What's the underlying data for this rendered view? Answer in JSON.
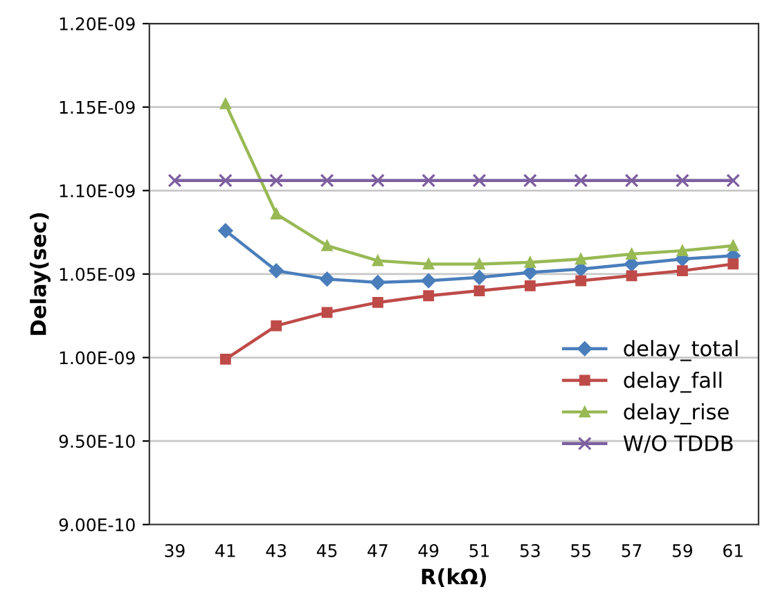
{
  "chart_data": {
    "type": "line",
    "xlabel": "R(kΩ)",
    "ylabel": "Delay(sec)",
    "categories": [
      "39",
      "41",
      "43",
      "45",
      "47",
      "49",
      "51",
      "53",
      "55",
      "57",
      "59",
      "61"
    ],
    "series": [
      {
        "name": "delay_total",
        "color": "#4a7ebb",
        "marker": "diamond",
        "values": [
          null,
          1.076e-09,
          1.052e-09,
          1.047e-09,
          1.045e-09,
          1.046e-09,
          1.048e-09,
          1.051e-09,
          1.053e-09,
          1.056e-09,
          1.059e-09,
          1.061e-09
        ]
      },
      {
        "name": "delay_fall",
        "color": "#be4b48",
        "marker": "square",
        "values": [
          null,
          9.99e-10,
          1.019e-09,
          1.027e-09,
          1.033e-09,
          1.037e-09,
          1.04e-09,
          1.043e-09,
          1.046e-09,
          1.049e-09,
          1.052e-09,
          1.056e-09
        ]
      },
      {
        "name": "delay_rise",
        "color": "#98b954",
        "marker": "triangle",
        "values": [
          null,
          1.152e-09,
          1.086e-09,
          1.067e-09,
          1.058e-09,
          1.056e-09,
          1.056e-09,
          1.057e-09,
          1.059e-09,
          1.062e-09,
          1.064e-09,
          1.067e-09
        ]
      },
      {
        "name": "W/O TDDB",
        "color": "#7d60a0",
        "marker": "cross",
        "values": [
          1.106e-09,
          1.106e-09,
          1.106e-09,
          1.106e-09,
          1.106e-09,
          1.106e-09,
          1.106e-09,
          1.106e-09,
          1.106e-09,
          1.106e-09,
          1.106e-09,
          1.106e-09
        ]
      }
    ],
    "ylim": [
      9e-10,
      1.2e-09
    ],
    "yticks": [
      {
        "value": 9e-10,
        "label": "9.00E-10"
      },
      {
        "value": 9.5e-10,
        "label": "9.50E-10"
      },
      {
        "value": 1e-09,
        "label": "1.00E-09"
      },
      {
        "value": 1.05e-09,
        "label": "1.05E-09"
      },
      {
        "value": 1.1e-09,
        "label": "1.10E-09"
      },
      {
        "value": 1.15e-09,
        "label": "1.15E-09"
      },
      {
        "value": 1.2e-09,
        "label": "1.20E-09"
      }
    ],
    "grid": "y",
    "legend": "bottom right",
    "line_style": "solid"
  }
}
